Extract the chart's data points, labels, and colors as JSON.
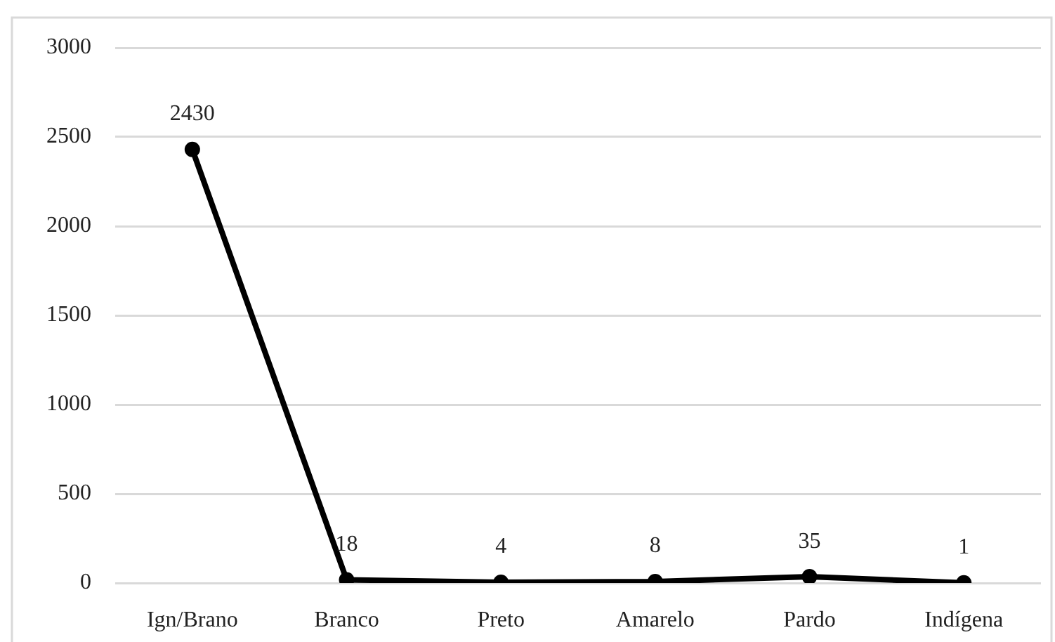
{
  "chart_data": {
    "type": "line",
    "categories": [
      "Ign/Brano",
      "Branco",
      "Preto",
      "Amarelo",
      "Pardo",
      "Indígena"
    ],
    "values": [
      2430,
      18,
      4,
      8,
      35,
      1
    ],
    "color": "#000000",
    "ylim": [
      0,
      3000
    ],
    "yticks": [
      0,
      500,
      1000,
      1500,
      2000,
      2500,
      3000
    ],
    "grid": "y",
    "data_labels": true,
    "marker": "circle",
    "line_style": "solid"
  }
}
